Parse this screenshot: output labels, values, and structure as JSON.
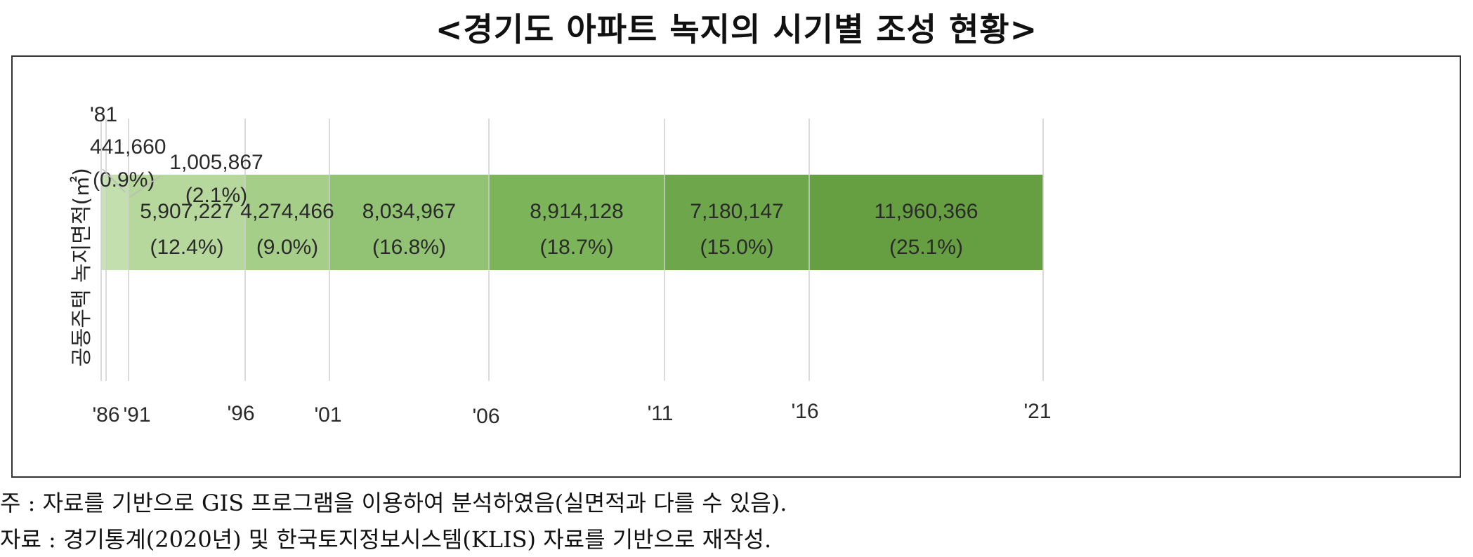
{
  "title": "<경기도 아파트 녹지의 시기별 조성 현황>",
  "chart_data": {
    "type": "bar",
    "orientation": "horizontal-stacked",
    "ylabel": "공동주택 녹지면적(㎡)",
    "ticks": [
      {
        "label": "'81",
        "year": 1981
      },
      {
        "label": "'86",
        "year": 1986
      },
      {
        "label": "'91",
        "year": 1991
      },
      {
        "label": "'96",
        "year": 1996
      },
      {
        "label": "'01",
        "year": 2001
      },
      {
        "label": "'06",
        "year": 2006
      },
      {
        "label": "'11",
        "year": 2011
      },
      {
        "label": "'16",
        "year": 2016
      },
      {
        "label": "'21",
        "year": 2021
      }
    ],
    "segments": [
      {
        "start": 1981,
        "end": 1986,
        "value": "441,660",
        "share": "(0.9%)",
        "color": "#c9e3b6"
      },
      {
        "start": 1986,
        "end": 1991,
        "value": "1,005,867",
        "share": "(2.1%)",
        "color": "#c2dfad"
      },
      {
        "start": 1991,
        "end": 1996,
        "value": "5,907,227",
        "share": "(12.4%)",
        "color": "#b6d89d"
      },
      {
        "start": 1996,
        "end": 2001,
        "value": "4,274,466",
        "share": "(9.0%)",
        "color": "#a5cf89"
      },
      {
        "start": 2001,
        "end": 2006,
        "value": "8,034,967",
        "share": "(16.8%)",
        "color": "#92c374"
      },
      {
        "start": 2006,
        "end": 2011,
        "value": "8,914,128",
        "share": "(18.7%)",
        "color": "#7cb45a"
      },
      {
        "start": 2011,
        "end": 2016,
        "value": "7,180,147",
        "share": "(15.0%)",
        "color": "#6ea74b"
      },
      {
        "start": 2016,
        "end": 2021,
        "value": "11,960,366",
        "share": "(25.1%)",
        "color": "#659f41"
      }
    ]
  },
  "notes": {
    "note1": "  주 : 자료를 기반으로 GIS 프로그램을 이용하여 분석하였음(실면적과 다를 수 있음).",
    "note2": "자료 : 경기통계(2020년) 및 한국토지정보시스템(KLIS) 자료를 기반으로 재작성."
  }
}
